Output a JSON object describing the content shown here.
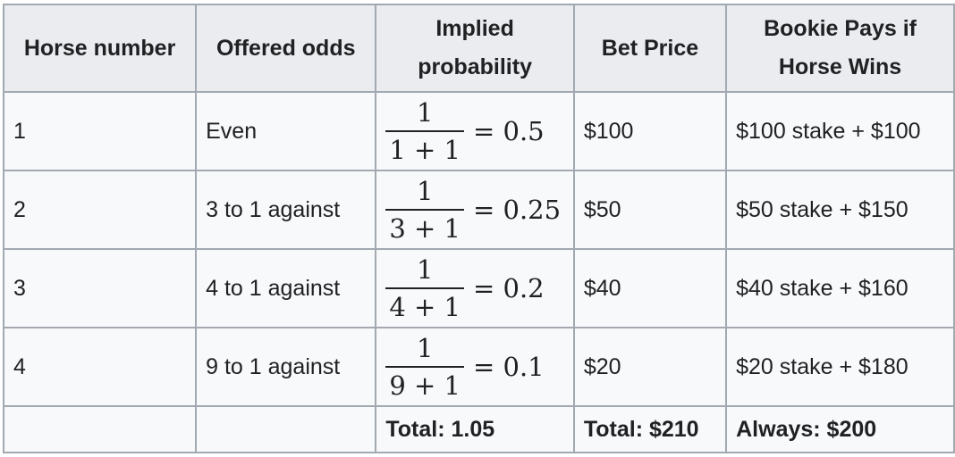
{
  "table": {
    "headers": [
      "Horse number",
      "Offered odds",
      "Implied probability",
      "Bet Price",
      "Bookie Pays if Horse Wins"
    ],
    "rows": [
      {
        "horse": "1",
        "odds": "Even",
        "prob_num": "1",
        "prob_den": "1 + 1",
        "prob_result": "= 0.5",
        "price": "$100",
        "pays": "$100 stake + $100"
      },
      {
        "horse": "2",
        "odds": "3 to 1 against",
        "prob_num": "1",
        "prob_den": "3 + 1",
        "prob_result": "= 0.25",
        "price": "$50",
        "pays": "$50 stake + $150"
      },
      {
        "horse": "3",
        "odds": "4 to 1 against",
        "prob_num": "1",
        "prob_den": "4 + 1",
        "prob_result": "= 0.2",
        "price": "$40",
        "pays": "$40 stake + $160"
      },
      {
        "horse": "4",
        "odds": "9 to 1 against",
        "prob_num": "1",
        "prob_den": "9 + 1",
        "prob_result": "= 0.1",
        "price": "$20",
        "pays": "$20 stake + $180"
      }
    ],
    "totals": {
      "prob": "Total: 1.05",
      "price": "Total: $210",
      "pays": "Always: $200"
    }
  }
}
